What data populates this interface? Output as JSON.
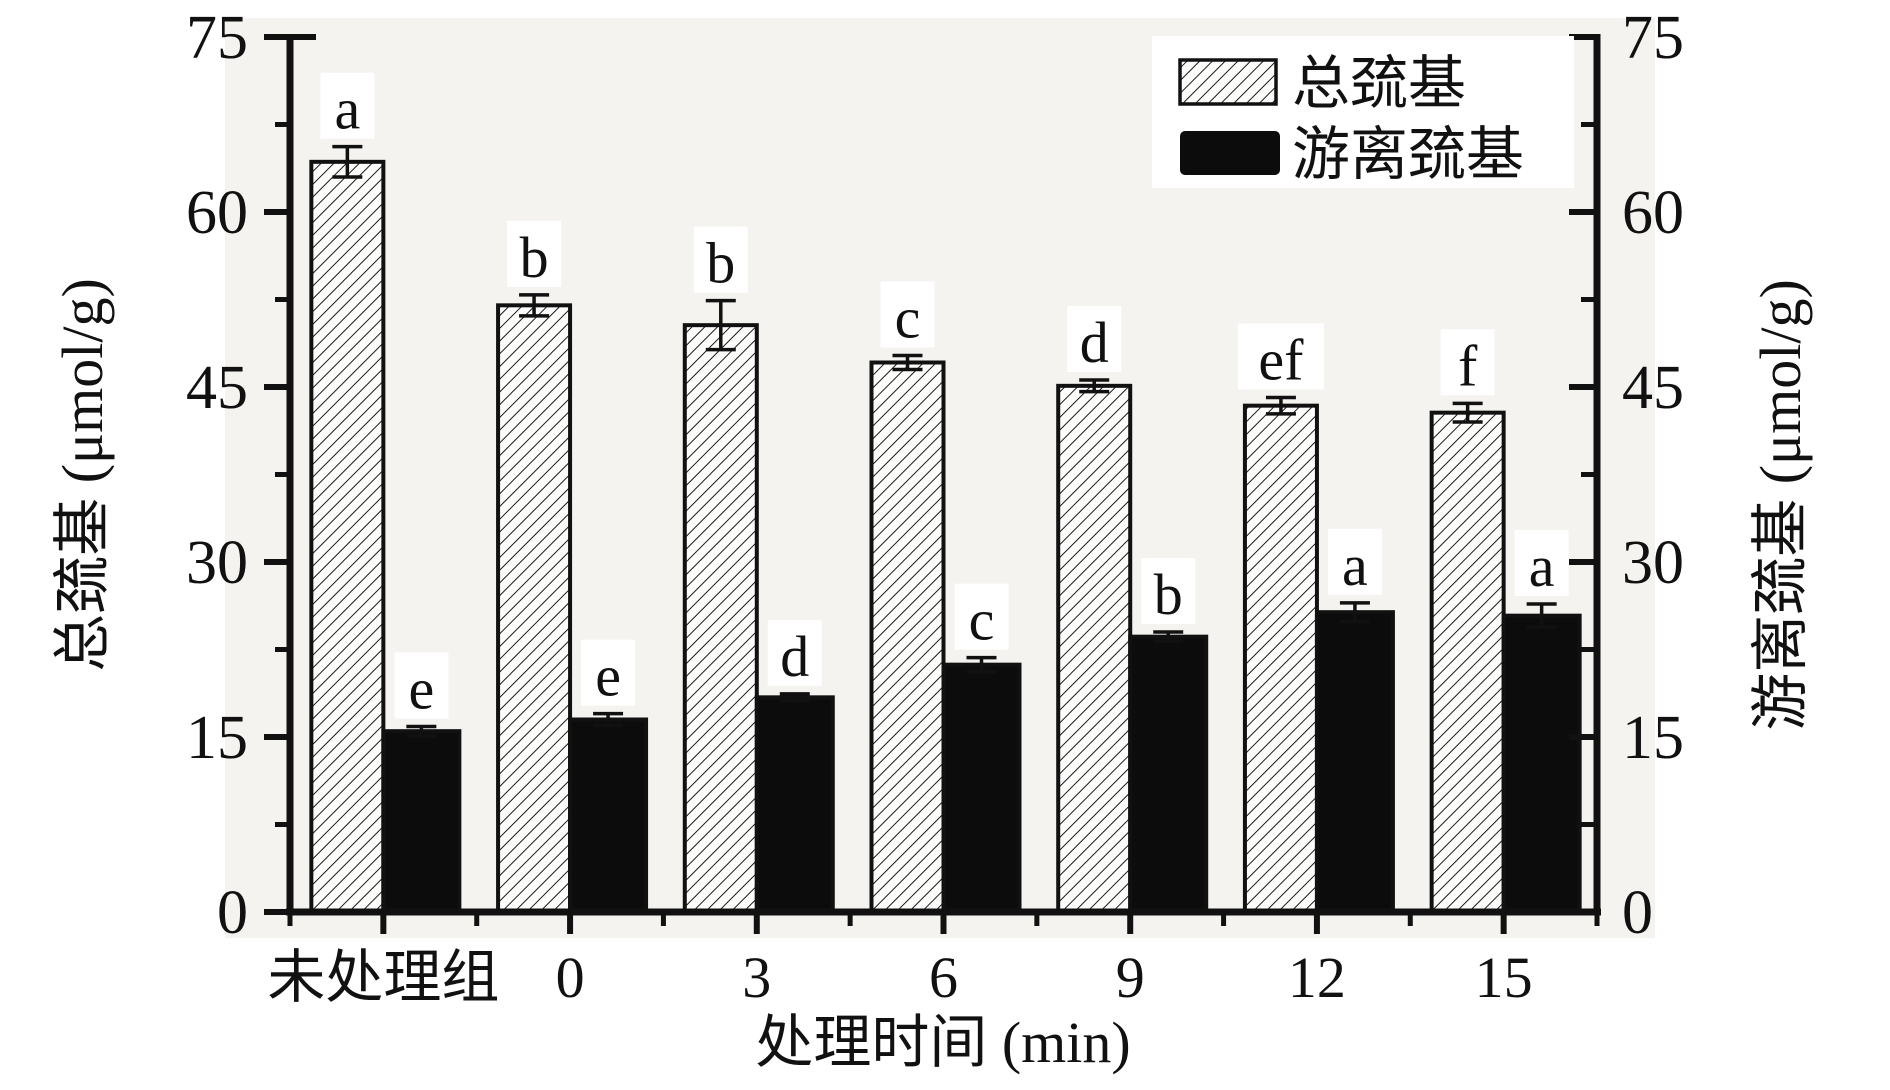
{
  "figure": {
    "background_hex": "#f4f3ef",
    "ink_hex": "#111111",
    "bar_fill_solid_hex": "#0c0c0c"
  },
  "chart_data": {
    "type": "bar",
    "title": "",
    "categories": [
      "未处理组",
      "0",
      "3",
      "6",
      "9",
      "12",
      "15"
    ],
    "xlabel": "处理时间 (min)",
    "ylabel_left": "总巯基 (μmol/g)",
    "ylabel_right": "游离巯基 (μmol/g)",
    "ylim": [
      0,
      75
    ],
    "yticks": [
      "0",
      "15",
      "30",
      "45",
      "60",
      "75"
    ],
    "ytick_values": [
      0,
      15,
      30,
      45,
      60,
      75
    ],
    "minor_ytick_values": [
      7.5,
      22.5,
      37.5,
      52.5,
      67.5
    ],
    "grid": false,
    "legend_position": "top-right",
    "series": [
      {
        "name": "总巯基",
        "style": "hatched",
        "values": [
          64.3,
          52.0,
          50.3,
          47.1,
          45.1,
          43.4,
          42.8
        ],
        "errors": [
          1.3,
          0.9,
          2.1,
          0.6,
          0.5,
          0.7,
          0.8
        ],
        "letters": [
          "a",
          "b",
          "b",
          "c",
          "d",
          "ef",
          "f"
        ]
      },
      {
        "name": "游离巯基",
        "style": "solid-black",
        "values": [
          15.5,
          16.5,
          18.4,
          21.2,
          23.6,
          25.7,
          25.4
        ],
        "errors": [
          0.4,
          0.5,
          0.3,
          0.6,
          0.4,
          0.8,
          1.0
        ],
        "letters": [
          "e",
          "e",
          "d",
          "c",
          "b",
          "a",
          "a"
        ]
      }
    ]
  }
}
